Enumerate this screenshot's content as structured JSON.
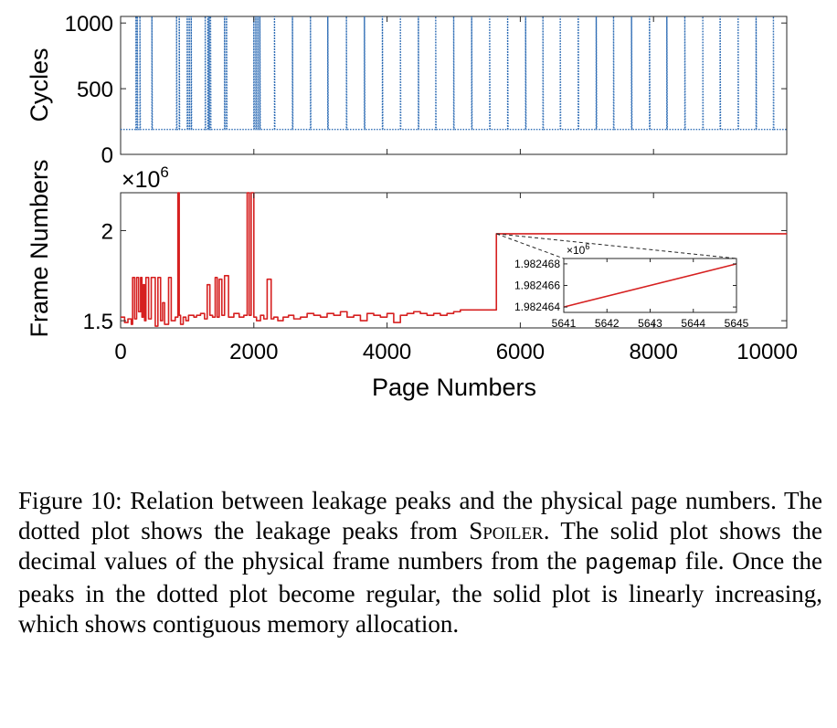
{
  "chart_data": [
    {
      "type": "line",
      "title": "",
      "xlabel": "",
      "ylabel": "Cycles",
      "xlim": [
        0,
        10000
      ],
      "ylim": [
        0,
        1050
      ],
      "yticks": [
        0,
        500,
        1000
      ],
      "ytick_labels": [
        "0",
        "500",
        "1000"
      ],
      "style": "dotted",
      "color": "#2f6db5",
      "baseline": 190,
      "peak_value": 1050,
      "peaks": [
        230,
        250,
        290,
        470,
        840,
        880,
        1000,
        1030,
        1060,
        1270,
        1310,
        1330,
        1350,
        1560,
        1590,
        2000,
        2030,
        2060,
        2090,
        2310,
        2580,
        2850,
        3110,
        3390,
        3660,
        3930,
        4200,
        4470,
        4730,
        5000,
        5270,
        5540,
        5810,
        6080,
        6340,
        6600,
        6870,
        7140,
        7400,
        7670,
        7940,
        8200,
        8470,
        8740,
        9000,
        9270,
        9540,
        9800
      ]
    },
    {
      "type": "line",
      "title": "",
      "xlabel": "Page Numbers",
      "ylabel": "Frame Numbers",
      "xlim": [
        0,
        10000
      ],
      "xticks": [
        0,
        2000,
        4000,
        6000,
        8000,
        10000
      ],
      "xtick_labels": [
        "0",
        "2000",
        "4000",
        "6000",
        "8000",
        "10000"
      ],
      "ylim": [
        1.46,
        2.21
      ],
      "yticks": [
        1.5,
        2
      ],
      "ytick_labels": [
        "1.5",
        "2"
      ],
      "exponent": {
        "base": "×10",
        "power": "6"
      },
      "color": "#d62020",
      "x": [
        0,
        60,
        110,
        160,
        180,
        210,
        240,
        270,
        300,
        320,
        340,
        360,
        380,
        420,
        460,
        520,
        560,
        600,
        630,
        660,
        720,
        760,
        820,
        860,
        880,
        900,
        940,
        980,
        1020,
        1100,
        1140,
        1200,
        1260,
        1300,
        1340,
        1380,
        1420,
        1450,
        1480,
        1520,
        1560,
        1620,
        1700,
        1780,
        1850,
        1900,
        1930,
        1960,
        2000,
        2040,
        2100,
        2150,
        2200,
        2260,
        2300,
        2360,
        2440,
        2520,
        2600,
        2700,
        2800,
        2900,
        3000,
        3100,
        3200,
        3300,
        3400,
        3500,
        3600,
        3700,
        3800,
        3900,
        4000,
        4100,
        4200,
        4300,
        4400,
        4500,
        4600,
        4700,
        4800,
        4900,
        5000,
        5100,
        5200,
        5300,
        5400,
        5500,
        5600,
        5641,
        5660,
        6000,
        7000,
        8000,
        9000,
        10000
      ],
      "y": [
        1.52,
        1.49,
        1.51,
        1.48,
        1.74,
        1.51,
        1.74,
        1.55,
        1.74,
        1.52,
        1.7,
        1.5,
        1.74,
        1.51,
        1.74,
        1.47,
        1.74,
        1.5,
        1.6,
        1.48,
        1.74,
        1.5,
        1.52,
        2.21,
        1.53,
        1.48,
        1.52,
        1.5,
        1.53,
        1.52,
        1.53,
        1.54,
        1.51,
        1.7,
        1.53,
        1.52,
        1.74,
        1.52,
        1.73,
        1.53,
        1.75,
        1.52,
        1.54,
        1.52,
        1.53,
        2.21,
        1.53,
        2.21,
        1.52,
        1.5,
        1.53,
        1.51,
        1.73,
        1.51,
        1.52,
        1.5,
        1.52,
        1.53,
        1.51,
        1.52,
        1.54,
        1.53,
        1.52,
        1.54,
        1.53,
        1.55,
        1.52,
        1.53,
        1.5,
        1.54,
        1.53,
        1.52,
        1.54,
        1.49,
        1.53,
        1.54,
        1.55,
        1.54,
        1.53,
        1.54,
        1.53,
        1.54,
        1.55,
        1.56,
        1.56,
        1.56,
        1.56,
        1.56,
        1.56,
        1.982464,
        1.9824645,
        1.98247,
        1.98248,
        1.98249,
        1.9825,
        1.98251
      ],
      "inset": {
        "type": "line",
        "xlim": [
          5641,
          5645
        ],
        "xticks": [
          5641,
          5642,
          5643,
          5644,
          5645
        ],
        "xtick_labels": [
          "5641",
          "5642",
          "5643",
          "5644",
          "5645"
        ],
        "ylim": [
          1.9824635,
          1.9824685
        ],
        "yticks": [
          1.982464,
          1.982466,
          1.982468
        ],
        "ytick_labels": [
          "1.982464",
          "1.982466",
          "1.982468"
        ],
        "exponent": {
          "base": "×10",
          "power": "6"
        },
        "x": [
          5641,
          5645
        ],
        "y": [
          1.982464,
          1.982468
        ]
      }
    }
  ],
  "caption": {
    "figure_label": "Figure 10:",
    "text_1": " Relation between leakage peaks and the physical page numbers. The dotted plot shows the leakage peaks from ",
    "spoiler": "Spoiler",
    "text_2": ". The solid plot shows the decimal values of the physical frame numbers from the ",
    "pagemap": "pagemap",
    "text_3": " file. Once the peaks in the dotted plot become regular, the solid plot is linearly increasing, which shows contiguous memory allocation."
  }
}
